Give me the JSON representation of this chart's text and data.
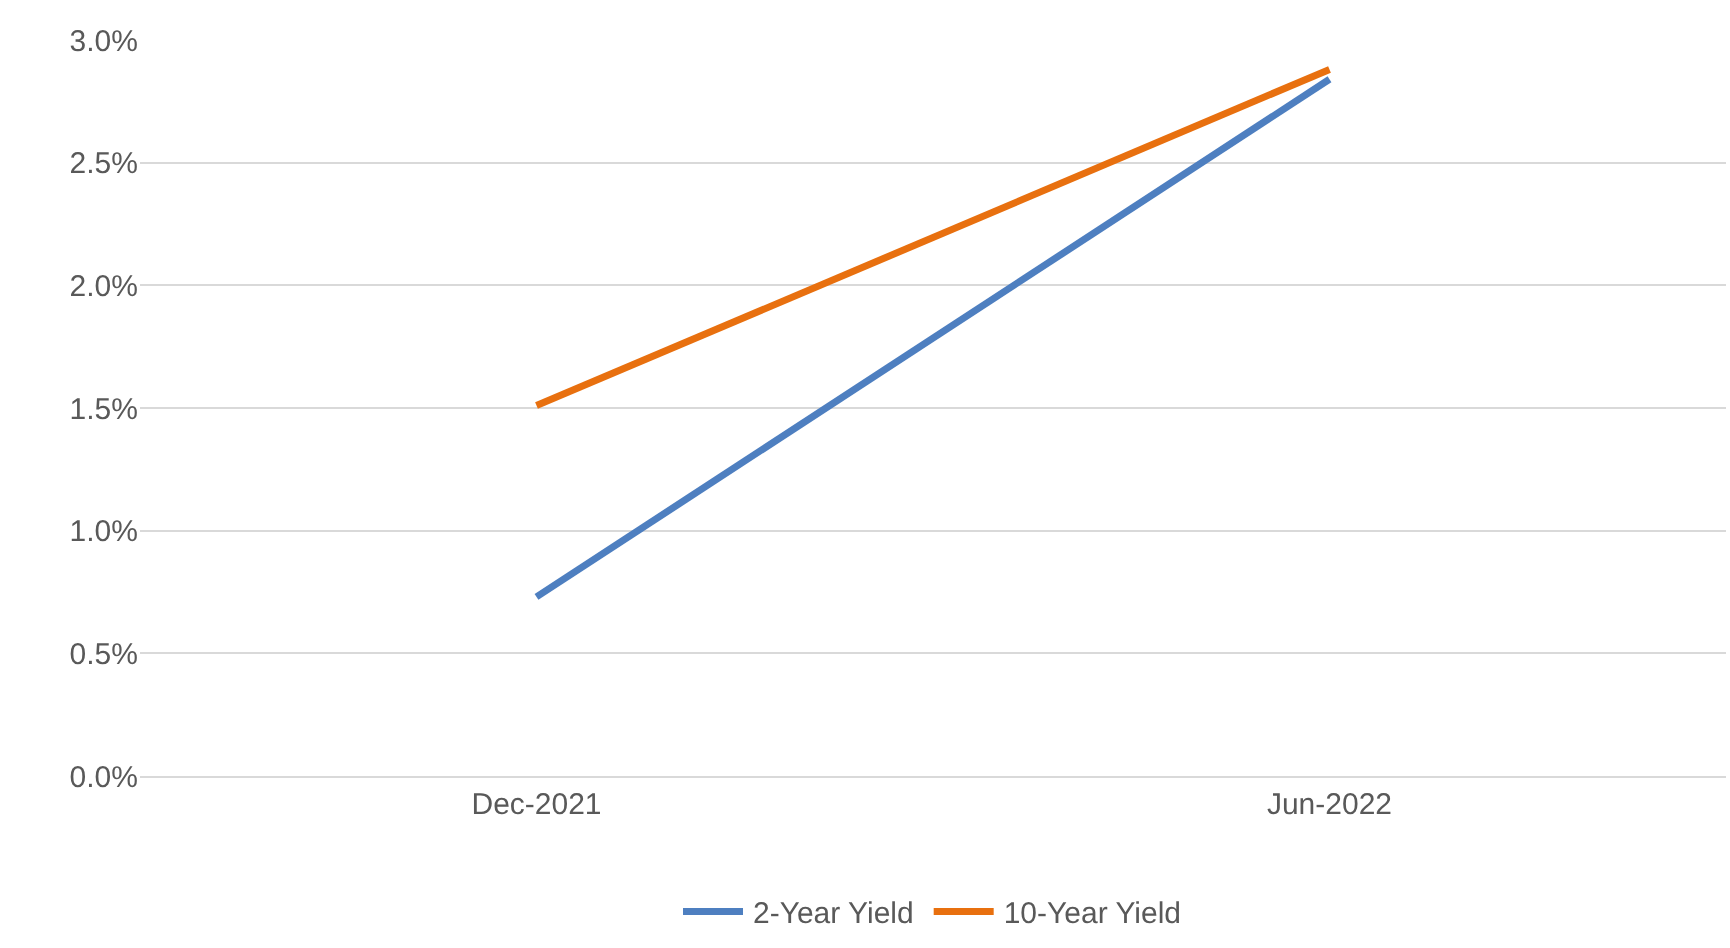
{
  "chart_data": {
    "type": "line",
    "categories": [
      "Dec-2021",
      "Jun-2022"
    ],
    "series": [
      {
        "name": "2-Year Yield",
        "color": "#4e7fc0",
        "values": [
          0.73,
          2.84
        ]
      },
      {
        "name": "10-Year Yield",
        "color": "#e8700f",
        "values": [
          1.51,
          2.88
        ]
      }
    ],
    "ylim": [
      0,
      3.0
    ],
    "yticks": [
      {
        "value": 0,
        "label": "0.0%"
      },
      {
        "value": 0.5,
        "label": "0.5%"
      },
      {
        "value": 1.0,
        "label": "1.0%"
      },
      {
        "value": 1.5,
        "label": "1.5%"
      },
      {
        "value": 2.0,
        "label": "2.0%"
      },
      {
        "value": 2.5,
        "label": "2.5%"
      },
      {
        "value": 3.0,
        "label": "3.0%"
      }
    ],
    "grid": "y",
    "legend": "bottom",
    "marker": "none",
    "line_style": "solid"
  }
}
